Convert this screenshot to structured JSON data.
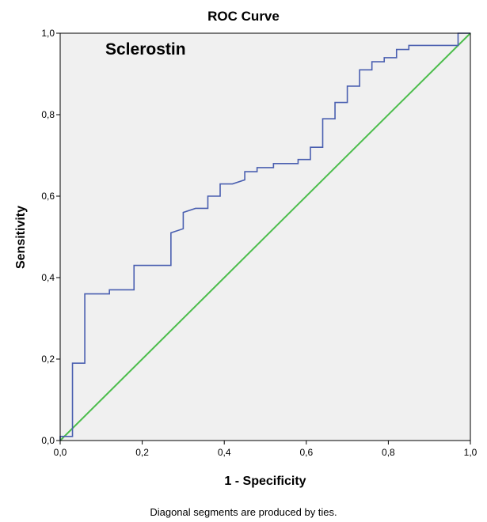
{
  "chart_data": {
    "type": "line",
    "title": "ROC Curve",
    "xlabel": "1 - Specificity",
    "ylabel": "Sensitivity",
    "annotation": "Sclerostin",
    "footnote": "Diagonal segments are produced by ties.",
    "xlim": [
      0,
      1
    ],
    "ylim": [
      0,
      1
    ],
    "x_ticks": [
      {
        "value": 0.0,
        "label": "0,0"
      },
      {
        "value": 0.2,
        "label": "0,2"
      },
      {
        "value": 0.4,
        "label": "0,4"
      },
      {
        "value": 0.6,
        "label": "0,6"
      },
      {
        "value": 0.8,
        "label": "0,8"
      },
      {
        "value": 1.0,
        "label": "1,0"
      }
    ],
    "y_ticks": [
      {
        "value": 0.0,
        "label": "0,0"
      },
      {
        "value": 0.2,
        "label": "0,2"
      },
      {
        "value": 0.4,
        "label": "0,4"
      },
      {
        "value": 0.6,
        "label": "0,6"
      },
      {
        "value": 0.8,
        "label": "0,8"
      },
      {
        "value": 1.0,
        "label": "1,0"
      }
    ],
    "colors": {
      "roc": "#4a5fb0",
      "reference": "#4cbd4c",
      "plot_bg": "#f0f0f0"
    },
    "series": [
      {
        "x": [
          0,
          0,
          0.03,
          0.03,
          0.06,
          0.06,
          0.12,
          0.12,
          0.18,
          0.18,
          0.27,
          0.27,
          0.3,
          0.3,
          0.33,
          0.33,
          0.36,
          0.36,
          0.39,
          0.39,
          0.42,
          0.45,
          0.45,
          0.48,
          0.48,
          0.52,
          0.52,
          0.58,
          0.58,
          0.61,
          0.61,
          0.64,
          0.64,
          0.67,
          0.67,
          0.7,
          0.7,
          0.73,
          0.73,
          0.76,
          0.76,
          0.79,
          0.79,
          0.82,
          0.82,
          0.85,
          0.85,
          0.88,
          0.88,
          0.97,
          0.97,
          1.0
        ],
        "y": [
          0,
          0.01,
          0.01,
          0.19,
          0.19,
          0.36,
          0.36,
          0.37,
          0.37,
          0.43,
          0.43,
          0.51,
          0.52,
          0.56,
          0.57,
          0.57,
          0.57,
          0.6,
          0.6,
          0.63,
          0.63,
          0.64,
          0.66,
          0.66,
          0.67,
          0.67,
          0.68,
          0.68,
          0.69,
          0.69,
          0.72,
          0.72,
          0.79,
          0.79,
          0.83,
          0.83,
          0.87,
          0.87,
          0.91,
          0.91,
          0.93,
          0.93,
          0.94,
          0.94,
          0.96,
          0.96,
          0.97,
          0.97,
          0.97,
          0.97,
          1.0,
          1.0
        ]
      },
      {
        "x": [
          0,
          1
        ],
        "y": [
          0,
          1
        ]
      }
    ]
  }
}
